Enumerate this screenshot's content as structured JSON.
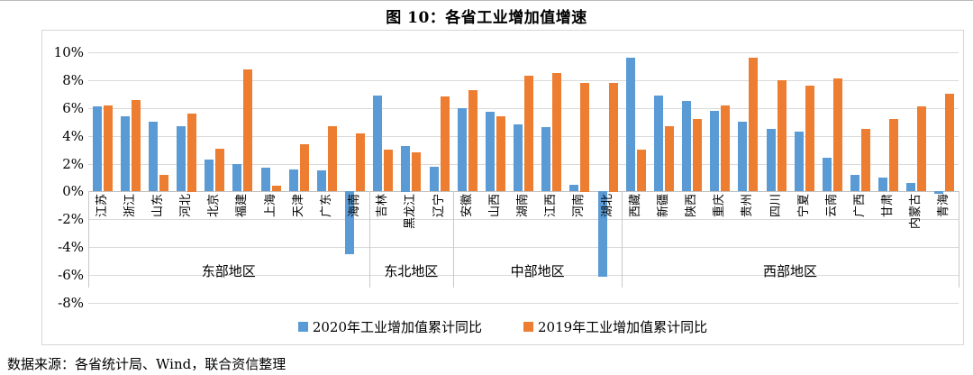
{
  "title": "图 10：各省工业增加值增速",
  "source_note": "数据来源：各省统计局、Wind，联合资信整理",
  "colors": {
    "series_2020": "#5B9BD5",
    "series_2019": "#ED7D31",
    "gridline": "#D9D9D9",
    "border": "#D6D6D6"
  },
  "chart_data": {
    "type": "bar",
    "title": "图 10：各省工业增加值增速",
    "grid": true,
    "legend_position": "bottom",
    "y_axis": {
      "min": -8,
      "max": 10,
      "step": 2,
      "tick_format": "percent",
      "tick_labels": [
        "10%",
        "8%",
        "6%",
        "4%",
        "2%",
        "0%",
        "-2%",
        "-4%",
        "-6%",
        "-8%"
      ]
    },
    "groups": [
      {
        "label": "东部地区",
        "count": 10
      },
      {
        "label": "东北地区",
        "count": 3
      },
      {
        "label": "中部地区",
        "count": 6
      },
      {
        "label": "西部地区",
        "count": 12
      }
    ],
    "categories": [
      "江苏",
      "浙江",
      "山东",
      "河北",
      "北京",
      "福建",
      "上海",
      "天津",
      "广东",
      "海南",
      "吉林",
      "黑龙江",
      "辽宁",
      "安徽",
      "山西",
      "湖南",
      "江西",
      "河南",
      "湖北",
      "西藏",
      "新疆",
      "陕西",
      "重庆",
      "贵州",
      "四川",
      "宁夏",
      "云南",
      "广西",
      "甘肃",
      "内蒙古",
      "青海"
    ],
    "series": [
      {
        "name": "2020年工业增加值累计同比",
        "color": "#5B9BD5",
        "values": [
          6.1,
          5.4,
          5.0,
          4.7,
          2.3,
          2.0,
          1.7,
          1.6,
          1.5,
          -4.5,
          6.9,
          3.3,
          1.8,
          6.0,
          5.7,
          4.8,
          4.6,
          0.5,
          -6.1,
          9.6,
          6.9,
          6.5,
          5.8,
          5.0,
          4.5,
          4.3,
          2.4,
          1.2,
          1.0,
          0.6,
          -0.2
        ]
      },
      {
        "name": "2019年工业增加值累计同比",
        "color": "#ED7D31",
        "values": [
          6.2,
          6.6,
          1.2,
          5.6,
          3.1,
          8.8,
          0.4,
          3.4,
          4.7,
          4.2,
          3.0,
          2.8,
          6.8,
          7.3,
          5.4,
          8.3,
          8.5,
          7.8,
          7.8,
          3.0,
          4.7,
          5.2,
          6.2,
          9.6,
          8.0,
          7.6,
          8.1,
          4.5,
          5.2,
          6.1,
          7.0
        ]
      }
    ]
  }
}
